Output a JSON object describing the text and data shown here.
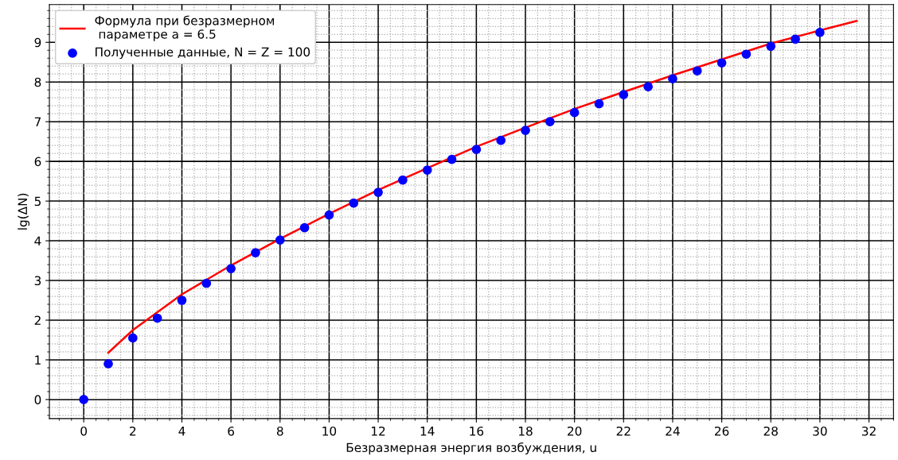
{
  "chart_data": {
    "type": "line",
    "xlabel": "Безразмерная энергия возбуждения, u",
    "ylabel": "lg(ΔN)",
    "xlim": [
      -1.4,
      33
    ],
    "ylim": [
      -0.48,
      9.95
    ],
    "xticks": [
      0,
      2,
      4,
      6,
      8,
      10,
      12,
      14,
      16,
      18,
      20,
      22,
      24,
      26,
      28,
      30,
      32
    ],
    "yticks": [
      0,
      1,
      2,
      3,
      4,
      5,
      6,
      7,
      8,
      9
    ],
    "grid": true,
    "legend": "top left",
    "series": [
      {
        "name": "Формула при безразмерном\n параметре a = 6.5",
        "color": "#ff0000",
        "marker": "none",
        "line_style": "solid",
        "x": [
          1,
          2,
          4,
          6,
          8,
          10,
          12,
          14,
          16,
          18,
          20,
          22,
          24,
          26,
          28,
          30,
          31.5
        ],
        "values": [
          1.18,
          1.75,
          2.65,
          3.38,
          4.05,
          4.68,
          5.28,
          5.83,
          6.37,
          6.85,
          7.32,
          7.75,
          8.17,
          8.57,
          8.97,
          9.3,
          9.54
        ]
      },
      {
        "name": "Полученные данные, N = Z = 100",
        "type": "scatter",
        "color": "#0000ff",
        "marker": "circle",
        "x": [
          0,
          1,
          2,
          3,
          4,
          5,
          6,
          7,
          8,
          9,
          10,
          11,
          12,
          13,
          14,
          15,
          16,
          17,
          18,
          19,
          20,
          21,
          22,
          23,
          24,
          25,
          26,
          27,
          28,
          29,
          30
        ],
        "values": [
          0,
          0.9,
          1.55,
          2.05,
          2.5,
          2.93,
          3.3,
          3.7,
          4.02,
          4.33,
          4.65,
          4.95,
          5.22,
          5.53,
          5.78,
          6.05,
          6.3,
          6.53,
          6.78,
          7.0,
          7.23,
          7.45,
          7.68,
          7.88,
          8.08,
          8.28,
          8.48,
          8.7,
          8.9,
          9.08,
          9.25
        ]
      }
    ]
  }
}
